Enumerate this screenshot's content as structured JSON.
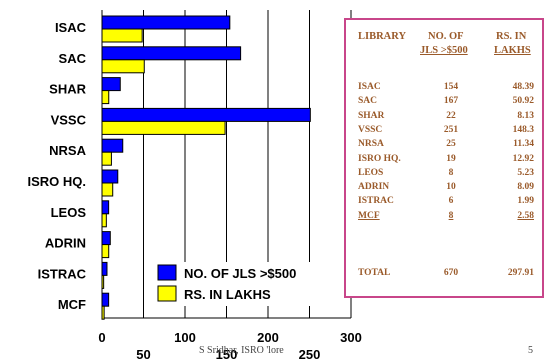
{
  "chart_data": {
    "type": "bar",
    "orientation": "horizontal",
    "categories": [
      "ISAC",
      "SAC",
      "SHAR",
      "VSSC",
      "NRSA",
      "ISRO HQ.",
      "LEOS",
      "ADRIN",
      "ISTRAC",
      "MCF"
    ],
    "series": [
      {
        "name": "NO. OF JLS >$500",
        "color": "#0000ff",
        "values": [
          154,
          167,
          22,
          251,
          25,
          19,
          8,
          10,
          6,
          8
        ]
      },
      {
        "name": "RS. IN LAKHS",
        "color": "#ffff00",
        "values": [
          48.39,
          50.92,
          8.13,
          148.3,
          11.34,
          12.92,
          5.23,
          8.09,
          1.99,
          2.58
        ]
      }
    ],
    "x_ticks_row1": [
      "0",
      "100",
      "200",
      "300"
    ],
    "x_ticks_row2": [
      "50",
      "150",
      "250"
    ],
    "xlim": [
      0,
      300
    ],
    "grid": true,
    "legend_position": "bottom-right"
  },
  "table": {
    "headers": {
      "library": "LIBRARY",
      "jls_line1": "NO. OF",
      "jls_line2": "JLS >$500",
      "rs_line1": "RS. IN",
      "rs_line2": "LAKHS"
    },
    "rows": [
      {
        "library": "ISAC",
        "jls": "154",
        "rs": "48.39"
      },
      {
        "library": "SAC",
        "jls": "167",
        "rs": "50.92"
      },
      {
        "library": "SHAR",
        "jls": "22",
        "rs": "8.13"
      },
      {
        "library": "VSSC",
        "jls": "251",
        "rs": "148.3"
      },
      {
        "library": "NRSA",
        "jls": "25",
        "rs": "11.34"
      },
      {
        "library": "ISRO HQ.",
        "jls": "19",
        "rs": "12.92"
      },
      {
        "library": "LEOS",
        "jls": "8",
        "rs": "5.23"
      },
      {
        "library": "ADRIN",
        "jls": "10",
        "rs": "8.09"
      },
      {
        "library": "ISTRAC",
        "jls": "6",
        "rs": "1.99"
      },
      {
        "library": "MCF",
        "jls": "8",
        "rs": "2.58"
      }
    ],
    "total": {
      "library": "TOTAL",
      "jls": "670",
      "rs": "297.91"
    }
  },
  "footer": {
    "text": "S Sridhar, ISRO 'lore",
    "page": "5"
  }
}
